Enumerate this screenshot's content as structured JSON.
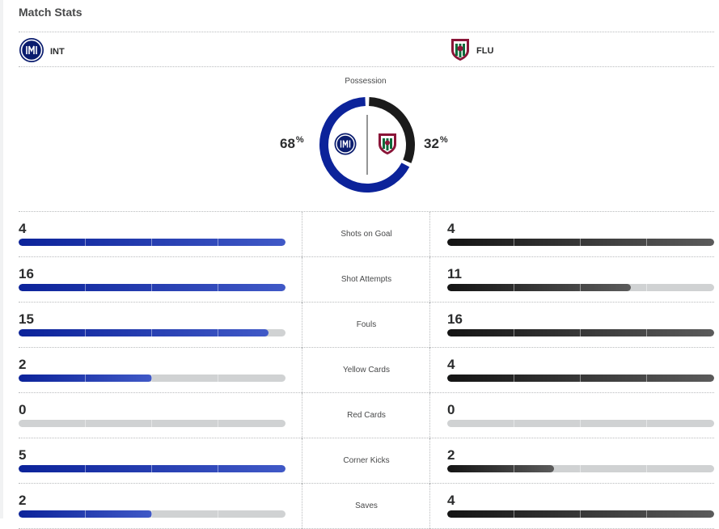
{
  "title": "Match Stats",
  "home": {
    "abbr": "INT",
    "color": "#0c239a"
  },
  "away": {
    "abbr": "FLU",
    "color": "#1b1b1b"
  },
  "possession": {
    "label": "Possession",
    "home_pct": "68",
    "away_pct": "32",
    "unit": "%"
  },
  "stats": [
    {
      "label": "Shots on Goal",
      "home": "4",
      "away": "4",
      "home_fill": 1.0,
      "away_fill": 1.0
    },
    {
      "label": "Shot Attempts",
      "home": "16",
      "away": "11",
      "home_fill": 1.0,
      "away_fill": 0.6875
    },
    {
      "label": "Fouls",
      "home": "15",
      "away": "16",
      "home_fill": 0.9375,
      "away_fill": 1.0
    },
    {
      "label": "Yellow Cards",
      "home": "2",
      "away": "4",
      "home_fill": 0.5,
      "away_fill": 1.0
    },
    {
      "label": "Red Cards",
      "home": "0",
      "away": "0",
      "home_fill": 0,
      "away_fill": 0
    },
    {
      "label": "Corner Kicks",
      "home": "5",
      "away": "2",
      "home_fill": 1.0,
      "away_fill": 0.4
    },
    {
      "label": "Saves",
      "home": "2",
      "away": "4",
      "home_fill": 0.5,
      "away_fill": 1.0
    }
  ]
}
